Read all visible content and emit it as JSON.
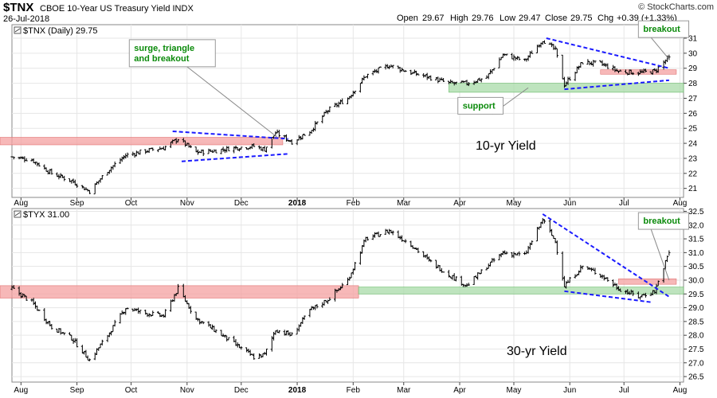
{
  "header": {
    "symbol": "$TNX",
    "name": "CBOE 10-Year US Treasury Yield INDX",
    "date": "26-Jul-2018",
    "open_label": "Open",
    "open": "29.67",
    "high_label": "High",
    "high": "29.76",
    "low_label": "Low",
    "low": "29.47",
    "close_label": "Close",
    "close": "29.75",
    "chg_label": "Chg",
    "chg": "+0.39 (+1.33%)",
    "brand": "© StockCharts.com"
  },
  "colors": {
    "price": "#000000",
    "trend": "#1a1aff",
    "resistance_zone": "#f4a0a0",
    "support_zone": "#a8dba8",
    "annotation_text": "#0a8a0a",
    "grid": "#e6e6e6"
  },
  "x_axis": {
    "labels": [
      "Aug",
      "Sep",
      "Oct",
      "Nov",
      "Dec",
      "2018",
      "Feb",
      "Mar",
      "Apr",
      "May",
      "Jun",
      "Jul",
      "Aug"
    ],
    "bold": [
      false,
      false,
      false,
      false,
      false,
      true,
      false,
      false,
      false,
      false,
      false,
      false,
      false
    ]
  },
  "chart_data": [
    {
      "type": "line",
      "panel_title": "$TNX (Daily) 29.75",
      "big_label": "10-yr Yield",
      "y_ticks": [
        "21",
        "22",
        "23",
        "24",
        "25",
        "26",
        "27",
        "28",
        "29",
        "30",
        "31"
      ],
      "ylim": [
        20.4,
        31.9
      ],
      "x_start": "2017-07-27",
      "x_end": "2018-08-03",
      "series": [
        {
          "values": [
            [
              "2017-07-27",
              23.1
            ],
            [
              "2017-08-07",
              22.9
            ],
            [
              "2017-08-18",
              22.0
            ],
            [
              "2017-08-29",
              21.5
            ],
            [
              "2017-09-08",
              20.8
            ],
            [
              "2017-09-18",
              22.2
            ],
            [
              "2017-09-28",
              23.2
            ],
            [
              "2017-10-09",
              23.5
            ],
            [
              "2017-10-19",
              23.7
            ],
            [
              "2017-10-27",
              24.3
            ],
            [
              "2017-11-06",
              23.4
            ],
            [
              "2017-11-16",
              23.5
            ],
            [
              "2017-11-27",
              23.7
            ],
            [
              "2017-12-08",
              23.8
            ],
            [
              "2017-12-14",
              23.6
            ],
            [
              "2017-12-20",
              24.7
            ],
            [
              "2017-12-29",
              24.1
            ],
            [
              "2018-01-08",
              24.8
            ],
            [
              "2018-01-18",
              26.2
            ],
            [
              "2018-01-29",
              27.0
            ],
            [
              "2018-02-08",
              28.5
            ],
            [
              "2018-02-21",
              29.2
            ],
            [
              "2018-03-05",
              28.7
            ],
            [
              "2018-03-15",
              28.4
            ],
            [
              "2018-03-26",
              28.0
            ],
            [
              "2018-04-05",
              28.0
            ],
            [
              "2018-04-16",
              28.4
            ],
            [
              "2018-04-25",
              29.9
            ],
            [
              "2018-05-07",
              29.5
            ],
            [
              "2018-05-17",
              30.9
            ],
            [
              "2018-05-24",
              30.2
            ],
            [
              "2018-05-29",
              27.9
            ],
            [
              "2018-06-08",
              29.4
            ],
            [
              "2018-06-18",
              29.3
            ],
            [
              "2018-06-28",
              28.8
            ],
            [
              "2018-07-09",
              28.7
            ],
            [
              "2018-07-18",
              28.8
            ],
            [
              "2018-07-26",
              29.75
            ]
          ]
        }
      ],
      "zones": [
        {
          "kind": "resistance",
          "from": "2017-07-27",
          "to": "2017-12-24",
          "y0": 23.9,
          "y1": 24.4
        },
        {
          "kind": "support",
          "from": "2018-03-26",
          "to": "2018-08-03",
          "y0": 27.4,
          "y1": 28.0
        },
        {
          "kind": "resistance",
          "from": "2018-06-18",
          "to": "2018-07-30",
          "y0": 28.6,
          "y1": 28.9
        }
      ],
      "trendlines": [
        {
          "from": [
            "2017-10-24",
            24.8
          ],
          "to": [
            "2017-12-27",
            24.3
          ]
        },
        {
          "from": [
            "2017-10-29",
            22.8
          ],
          "to": [
            "2017-12-27",
            23.3
          ]
        },
        {
          "from": [
            "2018-05-19",
            31.0
          ],
          "to": [
            "2018-07-26",
            29.0
          ]
        },
        {
          "from": [
            "2018-05-29",
            27.6
          ],
          "to": [
            "2018-07-26",
            28.2
          ]
        }
      ],
      "annotations": [
        {
          "lines": [
            "surge, triangle",
            "and breakout"
          ],
          "box_anchor": "2017-09-30",
          "box_y": 30.0,
          "pointer_from": "2017-11-01",
          "pointer_to": [
            "2017-12-21",
            24.4
          ]
        },
        {
          "lines": [
            "support"
          ],
          "box_anchor": "2018-03-31",
          "box_y": 26.5,
          "pointer_from": "2018-04-19",
          "pointer_to": [
            "2018-05-09",
            27.7
          ]
        },
        {
          "lines": [
            "breakout"
          ],
          "box_anchor": "2018-07-09",
          "box_y": 31.6,
          "pointer_from": "2018-07-16",
          "pointer_to": [
            "2018-07-26",
            29.6
          ]
        }
      ]
    },
    {
      "type": "line",
      "panel_title": "$TYX 31.00",
      "big_label": "30-yr Yield",
      "y_ticks": [
        "26.5",
        "27.0",
        "27.5",
        "28.0",
        "28.5",
        "29.0",
        "29.5",
        "30.0",
        "30.5",
        "31.0",
        "31.5",
        "32.0",
        "32.5"
      ],
      "ylim": [
        26.3,
        32.6
      ],
      "x_start": "2017-07-27",
      "x_end": "2018-08-03",
      "series": [
        {
          "values": [
            [
              "2017-07-27",
              29.7
            ],
            [
              "2017-08-07",
              29.2
            ],
            [
              "2017-08-18",
              28.3
            ],
            [
              "2017-08-29",
              27.9
            ],
            [
              "2017-09-08",
              27.1
            ],
            [
              "2017-09-18",
              28.0
            ],
            [
              "2017-09-28",
              29.0
            ],
            [
              "2017-10-09",
              28.8
            ],
            [
              "2017-10-19",
              28.7
            ],
            [
              "2017-10-27",
              29.7
            ],
            [
              "2017-11-06",
              28.6
            ],
            [
              "2017-11-16",
              28.2
            ],
            [
              "2017-11-27",
              27.7
            ],
            [
              "2017-12-08",
              27.2
            ],
            [
              "2017-12-14",
              27.3
            ],
            [
              "2017-12-20",
              28.2
            ],
            [
              "2017-12-29",
              28.0
            ],
            [
              "2018-01-08",
              28.9
            ],
            [
              "2018-01-18",
              29.3
            ],
            [
              "2018-01-29",
              30.0
            ],
            [
              "2018-02-08",
              31.5
            ],
            [
              "2018-02-21",
              31.8
            ],
            [
              "2018-03-05",
              31.3
            ],
            [
              "2018-03-15",
              30.7
            ],
            [
              "2018-03-26",
              30.2
            ],
            [
              "2018-04-05",
              29.8
            ],
            [
              "2018-04-16",
              30.5
            ],
            [
              "2018-04-25",
              31.0
            ],
            [
              "2018-05-07",
              30.9
            ],
            [
              "2018-05-17",
              32.2
            ],
            [
              "2018-05-24",
              31.4
            ],
            [
              "2018-05-29",
              29.8
            ],
            [
              "2018-06-08",
              30.5
            ],
            [
              "2018-06-18",
              30.2
            ],
            [
              "2018-06-28",
              29.7
            ],
            [
              "2018-07-09",
              29.4
            ],
            [
              "2018-07-18",
              29.6
            ],
            [
              "2018-07-26",
              31.0
            ]
          ]
        }
      ],
      "zones": [
        {
          "kind": "resistance",
          "from": "2017-07-27",
          "to": "2018-02-04",
          "y0": 29.35,
          "y1": 29.8
        },
        {
          "kind": "support",
          "from": "2018-02-04",
          "to": "2018-08-03",
          "y0": 29.5,
          "y1": 29.75
        },
        {
          "kind": "resistance",
          "from": "2018-06-28",
          "to": "2018-07-30",
          "y0": 29.85,
          "y1": 30.05
        }
      ],
      "trendlines": [
        {
          "from": [
            "2018-05-17",
            32.4
          ],
          "to": [
            "2018-07-26",
            29.4
          ]
        },
        {
          "from": [
            "2018-05-29",
            29.6
          ],
          "to": [
            "2018-07-16",
            29.2
          ]
        }
      ],
      "annotations": [
        {
          "lines": [
            "breakout"
          ],
          "box_anchor": "2018-07-09",
          "box_y": 32.15,
          "pointer_from": "2018-07-16",
          "pointer_to": [
            "2018-07-26",
            30.0
          ]
        }
      ]
    }
  ]
}
